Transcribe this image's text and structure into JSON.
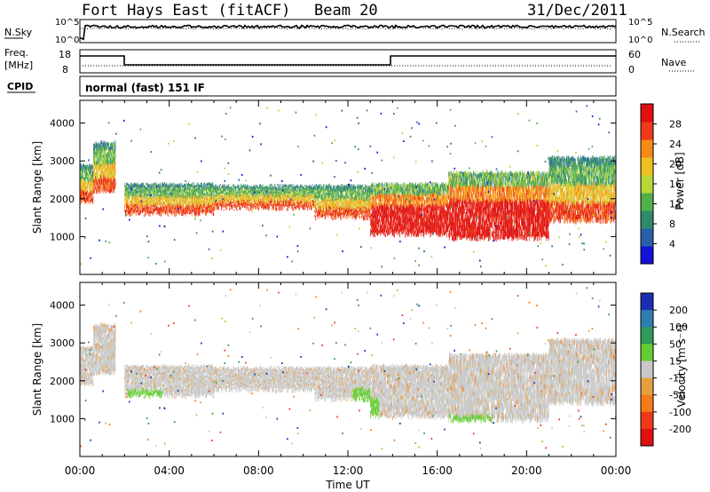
{
  "header": {
    "station": "Fort Hays East (fitACF)",
    "beam": "Beam 20",
    "date": "31/Dec/2011"
  },
  "summary": {
    "nsky_label": "N.Sky",
    "nsearch_label": "N.Search",
    "freq_label_1": "Freq.",
    "freq_label_2": "[MHz]",
    "nave_label": "Nave",
    "cpid_label": "CPID",
    "cpid_value": "normal (fast) 151 IF",
    "noise_ticks_left": [
      "10^5",
      "10^0"
    ],
    "noise_ticks_right": [
      "10^5",
      "10^0"
    ],
    "freq_ticks": [
      "18",
      "8"
    ],
    "nave_ticks": [
      "60",
      "0"
    ]
  },
  "chart_data": [
    {
      "type": "heatmap",
      "panel": "power",
      "ylabel": "Slant Range [km]",
      "yticks": [
        "1000",
        "2000",
        "3000",
        "4000"
      ],
      "ylim": [
        0,
        4600
      ],
      "xlim_hours": [
        0,
        24
      ],
      "colorbar": {
        "label": "Power [dB]",
        "ticks": [
          "4",
          "8",
          "12",
          "16",
          "20",
          "24",
          "28"
        ],
        "range": [
          0,
          32
        ],
        "colors": [
          "#1212d8",
          "#2a5fa8",
          "#2f8a6a",
          "#52b04a",
          "#b8d638",
          "#f0c020",
          "#f58a18",
          "#ee3a18",
          "#e01010"
        ]
      },
      "bands": [
        {
          "t0": 0.0,
          "t1": 0.6,
          "r_lo": 1900,
          "r_hi": 2900
        },
        {
          "t0": 0.6,
          "t1": 1.6,
          "r_lo": 2200,
          "r_hi": 3500
        },
        {
          "t0": 2.0,
          "t1": 6.0,
          "r_lo": 1600,
          "r_hi": 2400
        },
        {
          "t0": 6.0,
          "t1": 10.5,
          "r_lo": 1750,
          "r_hi": 2350
        },
        {
          "t0": 10.5,
          "t1": 13.0,
          "r_lo": 1500,
          "r_hi": 2350
        },
        {
          "t0": 13.0,
          "t1": 16.5,
          "r_lo": 1050,
          "r_hi": 2400
        },
        {
          "t0": 16.5,
          "t1": 21.0,
          "r_lo": 950,
          "r_hi": 2700
        },
        {
          "t0": 21.0,
          "t1": 24.0,
          "r_lo": 1400,
          "r_hi": 3100
        }
      ]
    },
    {
      "type": "heatmap",
      "panel": "velocity",
      "ylabel": "Slant Range [km]",
      "yticks": [
        "1000",
        "2000",
        "3000",
        "4000"
      ],
      "ylim": [
        0,
        4600
      ],
      "xlim_hours": [
        0,
        24
      ],
      "xlabel": "Time UT",
      "xticks": [
        "00:00",
        "04:00",
        "08:00",
        "12:00",
        "16:00",
        "20:00",
        "00:00"
      ],
      "colorbar": {
        "label": "Velocity [m s⁻¹]",
        "ticks": [
          "200",
          "100",
          "50",
          "15",
          "-15",
          "-50",
          "-100",
          "-200"
        ],
        "colors": [
          "#1a2fb0",
          "#2e7fb0",
          "#2f9a5a",
          "#66cc33",
          "#c8c8c8",
          "#e6a040",
          "#f57a18",
          "#ee3a18",
          "#e01010"
        ]
      }
    }
  ]
}
